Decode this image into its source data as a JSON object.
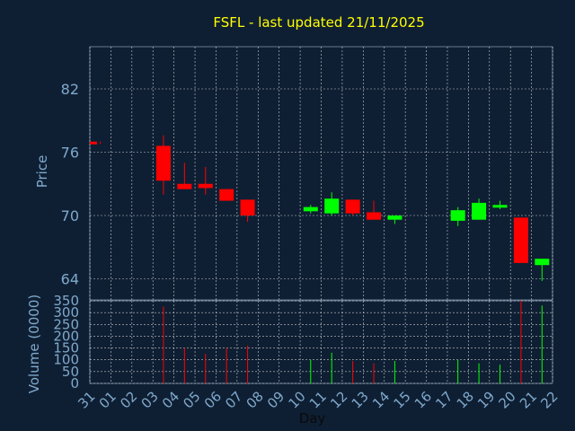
{
  "chart_data": [
    {
      "type": "candlestick",
      "title": "FSFL - last updated 21/11/2025",
      "ylabel": "Price",
      "ylim": [
        62,
        86
      ],
      "yticks": [
        64,
        70,
        76,
        82
      ],
      "grid": true,
      "x_categories": [
        "31",
        "01",
        "02",
        "03",
        "04",
        "05",
        "06",
        "07",
        "08",
        "09",
        "10",
        "11",
        "12",
        "13",
        "14",
        "15",
        "16",
        "17",
        "18",
        "19",
        "20",
        "21",
        "22"
      ],
      "candles": [
        {
          "x": "31",
          "open": 77.0,
          "close": 76.8,
          "high": 77.0,
          "low": 76.8,
          "direction": "down"
        },
        {
          "x": "03",
          "open": 76.6,
          "close": 73.3,
          "high": 77.6,
          "low": 72.0,
          "direction": "down"
        },
        {
          "x": "04",
          "open": 73.0,
          "close": 72.5,
          "high": 75.0,
          "low": 72.5,
          "direction": "down"
        },
        {
          "x": "05",
          "open": 73.0,
          "close": 72.6,
          "high": 74.6,
          "low": 72.0,
          "direction": "down"
        },
        {
          "x": "06",
          "open": 72.5,
          "close": 71.4,
          "high": 72.5,
          "low": 71.4,
          "direction": "down"
        },
        {
          "x": "07",
          "open": 71.5,
          "close": 70.0,
          "high": 71.5,
          "low": 69.4,
          "direction": "down"
        },
        {
          "x": "10",
          "open": 70.4,
          "close": 70.8,
          "high": 71.0,
          "low": 70.2,
          "direction": "up"
        },
        {
          "x": "11",
          "open": 70.2,
          "close": 71.6,
          "high": 72.2,
          "low": 70.0,
          "direction": "up"
        },
        {
          "x": "12",
          "open": 71.5,
          "close": 70.2,
          "high": 71.5,
          "low": 70.0,
          "direction": "down"
        },
        {
          "x": "13",
          "open": 70.3,
          "close": 69.6,
          "high": 71.4,
          "low": 69.6,
          "direction": "down"
        },
        {
          "x": "14",
          "open": 69.6,
          "close": 70.0,
          "high": 70.0,
          "low": 69.2,
          "direction": "up"
        },
        {
          "x": "17",
          "open": 69.5,
          "close": 70.5,
          "high": 70.8,
          "low": 69.0,
          "direction": "up"
        },
        {
          "x": "18",
          "open": 69.6,
          "close": 71.2,
          "high": 71.6,
          "low": 69.6,
          "direction": "up"
        },
        {
          "x": "19",
          "open": 70.9,
          "close": 71.0,
          "high": 71.4,
          "low": 70.6,
          "direction": "up"
        },
        {
          "x": "20",
          "open": 69.8,
          "close": 65.5,
          "high": 69.8,
          "low": 65.5,
          "direction": "down"
        },
        {
          "x": "21",
          "open": 65.3,
          "close": 65.9,
          "high": 65.9,
          "low": 63.8,
          "direction": "up"
        }
      ]
    },
    {
      "type": "bar",
      "ylabel": "Volume (0000)",
      "xlabel": "Day",
      "ylim": [
        0,
        350
      ],
      "yticks": [
        0,
        50,
        100,
        150,
        200,
        250,
        300,
        350
      ],
      "grid": true,
      "categories": [
        "31",
        "01",
        "02",
        "03",
        "04",
        "05",
        "06",
        "07",
        "08",
        "09",
        "10",
        "11",
        "12",
        "13",
        "14",
        "15",
        "16",
        "17",
        "18",
        "19",
        "20",
        "21",
        "22"
      ],
      "bars": [
        {
          "x": "31",
          "value": 0,
          "direction": "down"
        },
        {
          "x": "03",
          "value": 325,
          "direction": "down"
        },
        {
          "x": "04",
          "value": 150,
          "direction": "down"
        },
        {
          "x": "05",
          "value": 125,
          "direction": "down"
        },
        {
          "x": "06",
          "value": 150,
          "direction": "down"
        },
        {
          "x": "07",
          "value": 160,
          "direction": "down"
        },
        {
          "x": "10",
          "value": 100,
          "direction": "up"
        },
        {
          "x": "11",
          "value": 130,
          "direction": "up"
        },
        {
          "x": "12",
          "value": 95,
          "direction": "down"
        },
        {
          "x": "13",
          "value": 85,
          "direction": "down"
        },
        {
          "x": "14",
          "value": 95,
          "direction": "up"
        },
        {
          "x": "17",
          "value": 100,
          "direction": "up"
        },
        {
          "x": "18",
          "value": 85,
          "direction": "up"
        },
        {
          "x": "19",
          "value": 80,
          "direction": "up"
        },
        {
          "x": "20",
          "value": 350,
          "direction": "down"
        },
        {
          "x": "21",
          "value": 330,
          "direction": "up"
        }
      ]
    }
  ],
  "colors": {
    "background": "#0f1f33",
    "title": "#ffff00",
    "axis_text": "#7fa9cc",
    "grid": "#ffffff",
    "up": "#00ff00",
    "down": "#ff0000"
  }
}
